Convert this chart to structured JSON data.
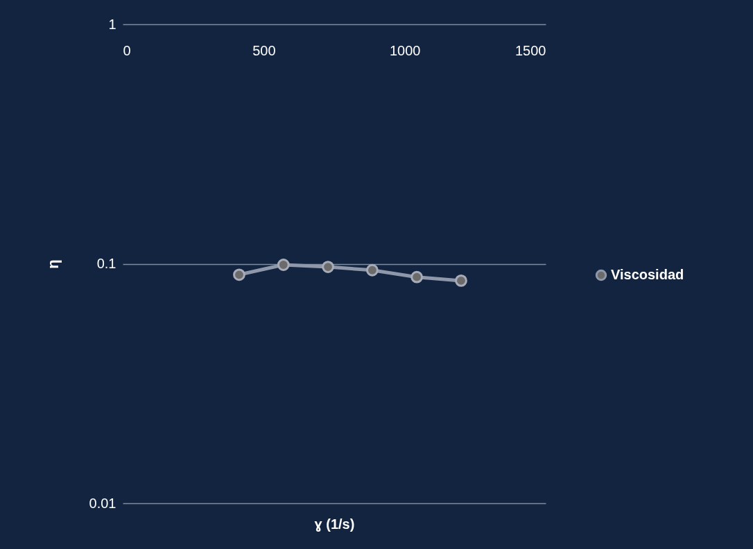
{
  "chart_data": {
    "type": "line",
    "xlabel": "ɣ (1/s)",
    "ylabel": "η",
    "x": [
      413,
      570,
      728,
      885,
      1043,
      1200
    ],
    "series": [
      {
        "name": "Viscosidad",
        "color": "#8f98ab",
        "values": [
          0.09,
          0.099,
          0.097,
          0.094,
          0.088,
          0.085
        ]
      }
    ],
    "xlim": [
      0,
      1500
    ],
    "xticks": [
      0,
      500,
      1000,
      1500
    ],
    "ylim": [
      0.01,
      1
    ],
    "yticks": [
      0.01,
      0.1,
      1
    ],
    "log": "y",
    "grid": "y",
    "legend": "right",
    "marker": "circle",
    "line_style": "solid"
  }
}
